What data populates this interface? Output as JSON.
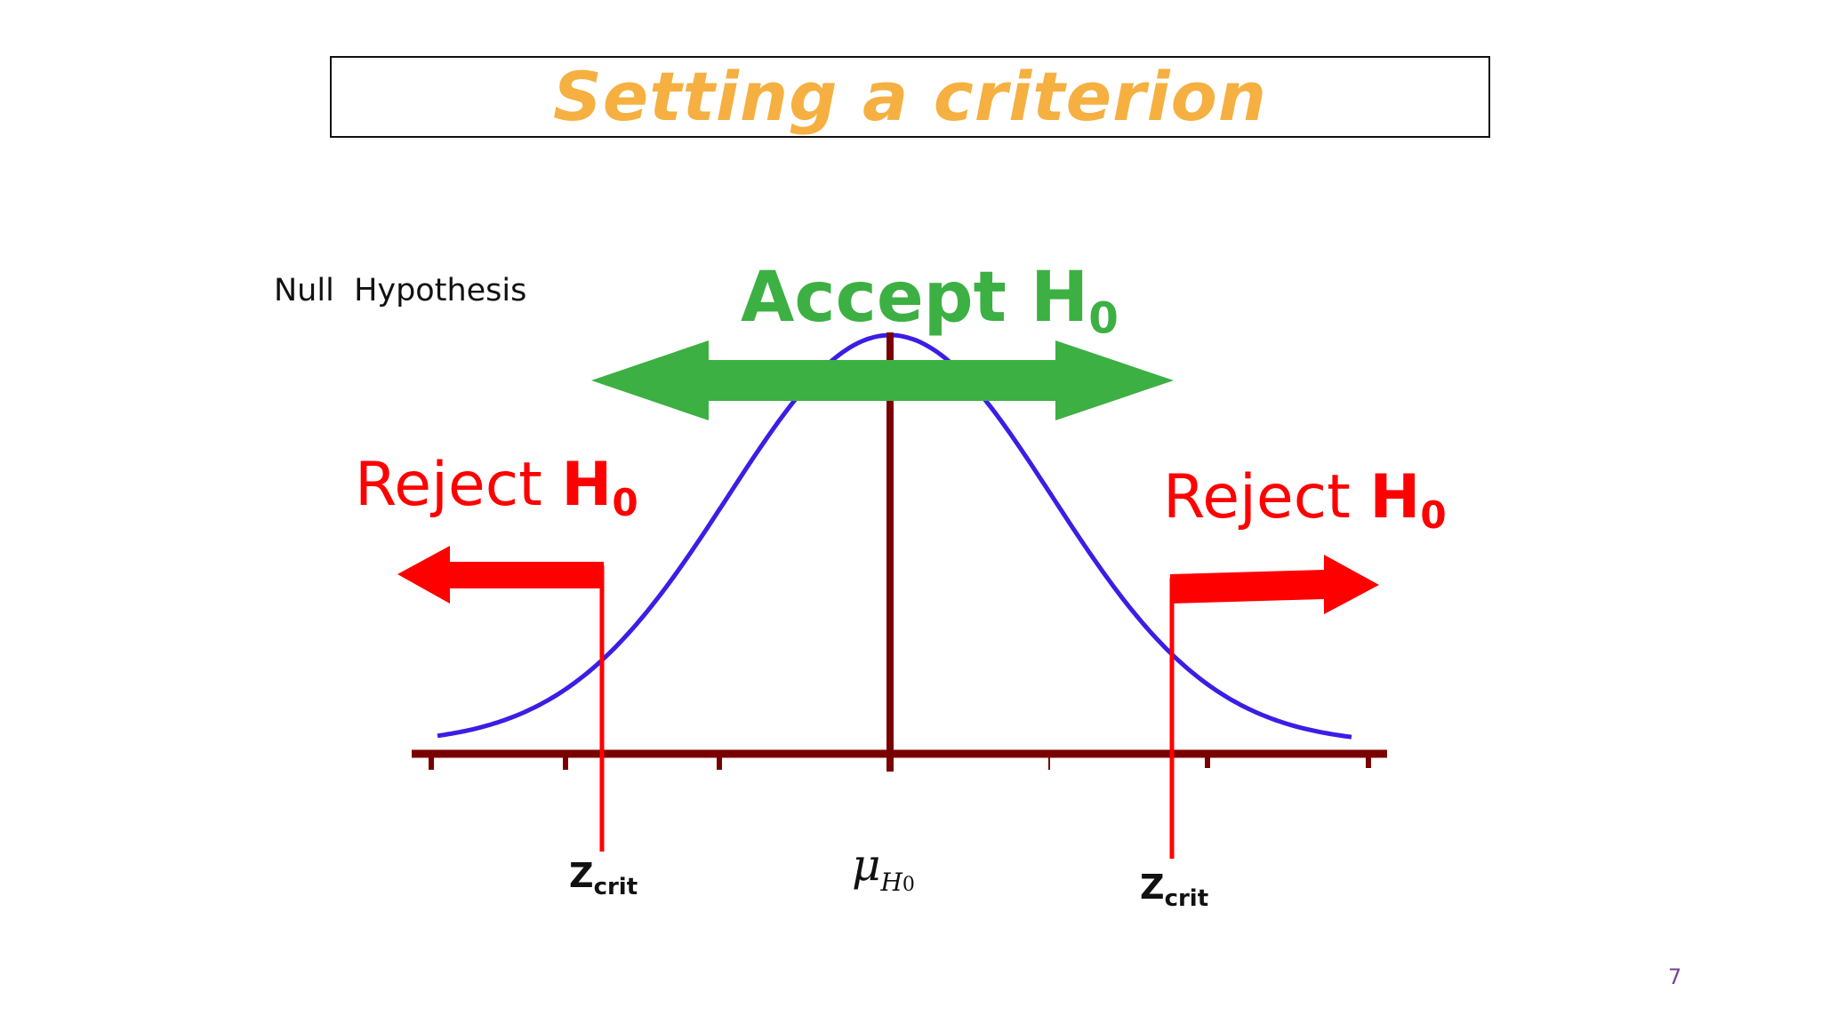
{
  "title": "Setting a criterion",
  "null_label": "Null  Hypothesis",
  "accept": {
    "text": "Accept H",
    "sub": "0"
  },
  "reject_left": {
    "text": "Reject ",
    "h": "H",
    "sub": "0"
  },
  "reject_right": {
    "text": "Reject ",
    "h": "H",
    "sub": "0"
  },
  "zcrit_left": {
    "z": "Z",
    "sub": "crit"
  },
  "zcrit_right": {
    "z": "Z",
    "sub": "crit"
  },
  "mu": {
    "symbol": "μ",
    "sub_letter": "H",
    "sub_digit": "0"
  },
  "page_number": "7",
  "colors": {
    "title": "#f5b041",
    "accept": "#3cb043",
    "reject": "#ff0000",
    "curve": "#3a1ee6",
    "axis": "#7a0000"
  }
}
